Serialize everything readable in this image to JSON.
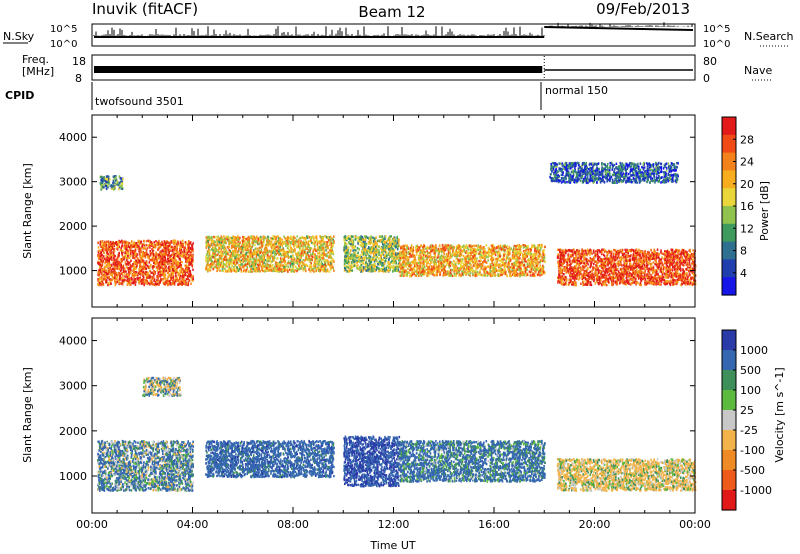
{
  "header": {
    "station": "Inuvik (fitACF)",
    "beam": "Beam 12",
    "date": "09/Feb/2013"
  },
  "noise_panel": {
    "left_label": "N.Sky",
    "right_label": "N.Search",
    "tick_top": "10^5",
    "tick_bottom": "10^0"
  },
  "freq_panel": {
    "left_label_line1": "Freq.",
    "left_label_line2": "[MHz]",
    "right_label": "Nave",
    "left_tick_top": "18",
    "left_tick_bottom": "8",
    "right_tick_top": "80",
    "right_tick_bottom": "0"
  },
  "cpid_panel": {
    "label": "CPID",
    "mode1": "twofsound 3501",
    "mode2": "normal 150"
  },
  "power_panel": {
    "ylabel": "Slant Range [km]",
    "colorbar_label": "Power [dB]",
    "colorbar_ticks": [
      "28",
      "24",
      "20",
      "16",
      "12",
      "8",
      "4"
    ],
    "colorbar_colors": [
      "#e21a1a",
      "#f04a16",
      "#f4821a",
      "#f7ad1e",
      "#e8d63a",
      "#8fc34e",
      "#3f9a5e",
      "#2f6f8f",
      "#1f3fae",
      "#1616e8"
    ]
  },
  "velocity_panel": {
    "ylabel": "Slant Range [km]",
    "colorbar_label": "Velocity [m s^-1]",
    "colorbar_ticks": [
      "1000",
      "500",
      "100",
      "25",
      "-25",
      "-100",
      "-500",
      "-1000"
    ],
    "colorbar_colors": [
      "#2a3aa8",
      "#3467b0",
      "#3f8f5a",
      "#5cba3e",
      "#c8c8c8",
      "#f2b44a",
      "#f08a24",
      "#ee5a1a",
      "#e01818"
    ]
  },
  "xaxis": {
    "label": "Time UT",
    "ticks": [
      "00:00",
      "04:00",
      "08:00",
      "12:00",
      "16:00",
      "20:00",
      "00:00"
    ]
  },
  "chart_data": [
    {
      "type": "line",
      "title": "Inuvik (fitACF) Beam 12 09/Feb/2013",
      "series": [
        {
          "name": "N.Sky"
        },
        {
          "name": "N.Search"
        }
      ],
      "xlabel": "",
      "x_range": [
        "00:00",
        "24:00"
      ],
      "y_scale": "log",
      "ylim": [
        1,
        100000
      ]
    },
    {
      "type": "line",
      "series": [
        {
          "name": "Freq.",
          "approx_values": [
            {
              "x": "00:00",
              "y": 11
            },
            {
              "x": "18:00",
              "y": 11
            },
            {
              "x": "24:00",
              "y": 11
            }
          ]
        },
        {
          "name": "Nave"
        }
      ],
      "ylim": [
        8,
        18
      ]
    },
    {
      "type": "table",
      "rows": [
        [
          "00:00",
          "18:00",
          "twofsound 3501"
        ],
        [
          "18:00",
          "24:00",
          "normal 150"
        ]
      ]
    },
    {
      "type": "heatmap",
      "quantity": "Power [dB]",
      "xlabel": "Time UT",
      "ylabel": "Slant Range [km]",
      "x_range": [
        "00:00",
        "24:00"
      ],
      "ylim": [
        180,
        4500
      ],
      "clim": [
        0,
        30
      ],
      "approx_regions": [
        {
          "t0": 0.2,
          "t1": 4.0,
          "r0": 700,
          "r1": 1700,
          "level": 25
        },
        {
          "t0": 0.3,
          "t1": 1.2,
          "r0": 2850,
          "r1": 3150,
          "level": 10
        },
        {
          "t0": 4.5,
          "t1": 9.6,
          "r0": 1000,
          "r1": 1800,
          "level": 18
        },
        {
          "t0": 10.0,
          "t1": 12.2,
          "r0": 1000,
          "r1": 1800,
          "level": 14
        },
        {
          "t0": 12.2,
          "t1": 18.0,
          "r0": 900,
          "r1": 1600,
          "level": 20
        },
        {
          "t0": 18.5,
          "t1": 24.0,
          "r0": 700,
          "r1": 1500,
          "level": 26
        },
        {
          "t0": 18.2,
          "t1": 23.3,
          "r0": 3000,
          "r1": 3450,
          "level": 6
        }
      ]
    },
    {
      "type": "heatmap",
      "quantity": "Velocity [m s^-1]",
      "xlabel": "Time UT",
      "ylabel": "Slant Range [km]",
      "x_range": [
        "00:00",
        "24:00"
      ],
      "ylim": [
        180,
        4500
      ],
      "clim": [
        -1000,
        1000
      ],
      "approx_regions": [
        {
          "t0": 0.2,
          "t1": 4.0,
          "r0": 700,
          "r1": 1800,
          "level": 100
        },
        {
          "t0": 2.0,
          "t1": 3.5,
          "r0": 2800,
          "r1": 3200,
          "level": 0
        },
        {
          "t0": 4.5,
          "t1": 9.6,
          "r0": 1000,
          "r1": 1800,
          "level": 300
        },
        {
          "t0": 10.0,
          "t1": 12.2,
          "r0": 800,
          "r1": 1900,
          "level": 500
        },
        {
          "t0": 12.2,
          "t1": 18.0,
          "r0": 900,
          "r1": 1800,
          "level": 200
        },
        {
          "t0": 18.5,
          "t1": 24.0,
          "r0": 700,
          "r1": 1400,
          "level": -150
        }
      ]
    }
  ]
}
